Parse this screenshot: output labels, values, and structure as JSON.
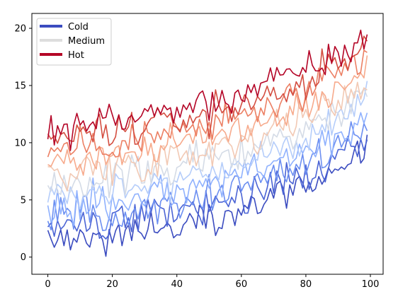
{
  "chart_data": {
    "type": "line",
    "title": "",
    "xlabel": "",
    "ylabel": "",
    "xlim": [
      -4.95,
      103.95
    ],
    "ylim": [
      -1.5,
      21.3
    ],
    "xticks": [
      0,
      20,
      40,
      60,
      80,
      100
    ],
    "yticks": [
      0,
      5,
      10,
      15,
      20
    ],
    "grid": false,
    "legend": {
      "placement": "top-left",
      "entries": [
        {
          "label": "Cold",
          "color": "#3b4cc0"
        },
        {
          "label": "Medium",
          "color": "#dddddd"
        },
        {
          "label": "Hot",
          "color": "#b40426"
        }
      ]
    },
    "line_profiles": [
      {
        "offset": 0.0,
        "color": "#3b4cc0"
      },
      {
        "offset": 1.0,
        "color": "#4b64d5"
      },
      {
        "offset": 2.0,
        "color": "#6c8ff1"
      },
      {
        "offset": 3.0,
        "color": "#8fb1fe"
      },
      {
        "offset": 4.0,
        "color": "#b5cdfa"
      },
      {
        "offset": 5.0,
        "color": "#d4dbe6"
      },
      {
        "offset": 6.0,
        "color": "#f2c9b4"
      },
      {
        "offset": 7.0,
        "color": "#f7aa8c"
      },
      {
        "offset": 8.0,
        "color": "#ec7f63"
      },
      {
        "offset": 9.0,
        "color": "#d44e41"
      },
      {
        "offset": 10.0,
        "color": "#b40426"
      }
    ],
    "x_start": 0,
    "x_end": 99,
    "base_curve": [
      [
        0,
        1.4
      ],
      [
        10,
        1.6
      ],
      [
        20,
        2.0
      ],
      [
        30,
        2.4
      ],
      [
        40,
        2.9
      ],
      [
        50,
        3.5
      ],
      [
        60,
        4.3
      ],
      [
        70,
        5.3
      ],
      [
        80,
        6.3
      ],
      [
        90,
        7.6
      ],
      [
        99,
        9.4
      ]
    ],
    "noise_amplitude": 1.1,
    "series": [
      {
        "name": "Cold",
        "color": "#3b4cc0"
      },
      {
        "name": "Medium",
        "color": "#dddddd"
      },
      {
        "name": "Hot",
        "color": "#b40426"
      }
    ]
  }
}
